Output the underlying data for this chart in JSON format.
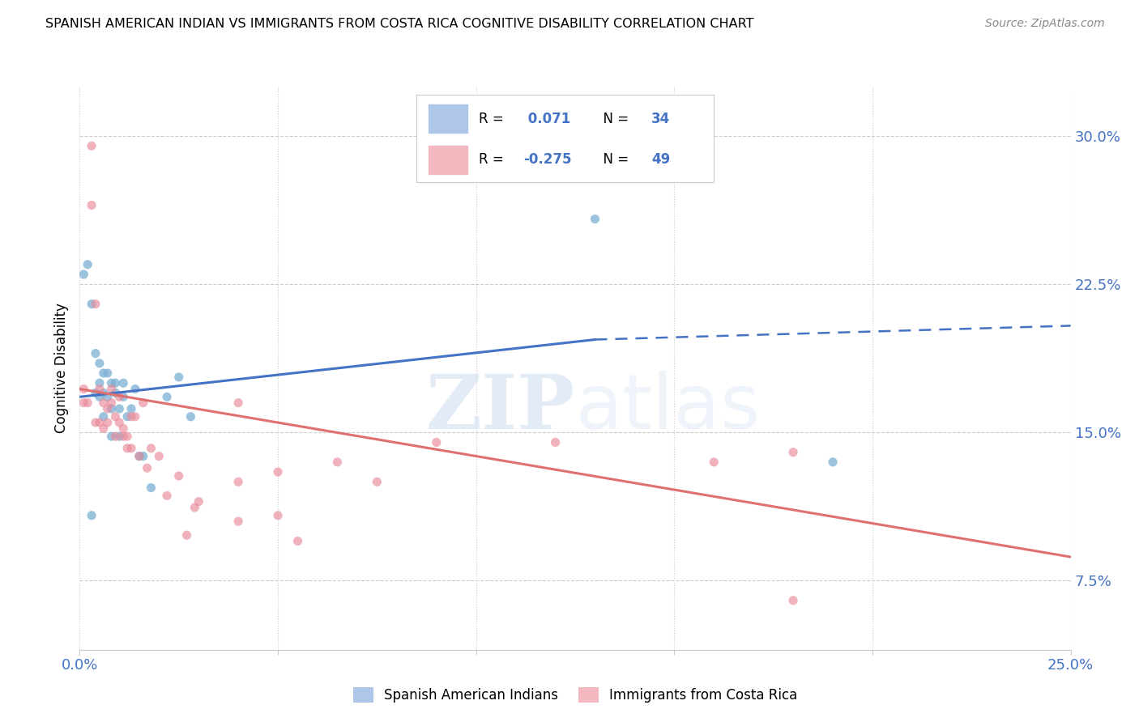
{
  "title": "SPANISH AMERICAN INDIAN VS IMMIGRANTS FROM COSTA RICA COGNITIVE DISABILITY CORRELATION CHART",
  "source": "Source: ZipAtlas.com",
  "ylabel": "Cognitive Disability",
  "ylabel_right_ticks": [
    0.075,
    0.15,
    0.225,
    0.3
  ],
  "ylabel_right_labels": [
    "7.5%",
    "15.0%",
    "22.5%",
    "30.0%"
  ],
  "xlim": [
    0.0,
    0.25
  ],
  "ylim": [
    0.04,
    0.325
  ],
  "blue_R": "0.071",
  "blue_N": "34",
  "pink_R": "-0.275",
  "pink_N": "49",
  "blue_line_x0": 0.0,
  "blue_line_y0": 0.168,
  "blue_line_x1": 0.13,
  "blue_line_y1": 0.197,
  "blue_line_x2": 0.25,
  "blue_line_y2": 0.204,
  "pink_line_x0": 0.0,
  "pink_line_y0": 0.172,
  "pink_line_x1": 0.25,
  "pink_line_y1": 0.087,
  "blue_color": "#4472c4",
  "pink_color": "#e07070",
  "blue_scatter_color": "#7bafd4",
  "pink_scatter_color": "#e88a9a",
  "legend_label_blue": "Spanish American Indians",
  "legend_label_pink": "Immigrants from Costa Rica",
  "blue_scatter_x": [
    0.001,
    0.002,
    0.003,
    0.004,
    0.004,
    0.005,
    0.005,
    0.005,
    0.006,
    0.006,
    0.007,
    0.007,
    0.008,
    0.008,
    0.009,
    0.009,
    0.01,
    0.01,
    0.011,
    0.011,
    0.012,
    0.013,
    0.014,
    0.015,
    0.016,
    0.018,
    0.022,
    0.025,
    0.028,
    0.003,
    0.006,
    0.008,
    0.13,
    0.19
  ],
  "blue_scatter_y": [
    0.23,
    0.235,
    0.215,
    0.19,
    0.17,
    0.185,
    0.175,
    0.168,
    0.18,
    0.17,
    0.18,
    0.168,
    0.175,
    0.162,
    0.175,
    0.17,
    0.162,
    0.148,
    0.175,
    0.168,
    0.158,
    0.162,
    0.172,
    0.138,
    0.138,
    0.122,
    0.168,
    0.178,
    0.158,
    0.108,
    0.158,
    0.148,
    0.258,
    0.135
  ],
  "pink_scatter_x": [
    0.001,
    0.001,
    0.002,
    0.003,
    0.003,
    0.004,
    0.004,
    0.005,
    0.005,
    0.006,
    0.006,
    0.007,
    0.007,
    0.008,
    0.008,
    0.009,
    0.009,
    0.01,
    0.01,
    0.011,
    0.011,
    0.012,
    0.012,
    0.013,
    0.013,
    0.014,
    0.015,
    0.016,
    0.017,
    0.018,
    0.02,
    0.022,
    0.025,
    0.027,
    0.029,
    0.04,
    0.05,
    0.065,
    0.075,
    0.09,
    0.04,
    0.05,
    0.12,
    0.16,
    0.18,
    0.18,
    0.03,
    0.04,
    0.055
  ],
  "pink_scatter_y": [
    0.172,
    0.165,
    0.165,
    0.295,
    0.265,
    0.215,
    0.155,
    0.172,
    0.155,
    0.165,
    0.152,
    0.162,
    0.155,
    0.165,
    0.172,
    0.148,
    0.158,
    0.168,
    0.155,
    0.152,
    0.148,
    0.148,
    0.142,
    0.158,
    0.142,
    0.158,
    0.138,
    0.165,
    0.132,
    0.142,
    0.138,
    0.118,
    0.128,
    0.098,
    0.112,
    0.165,
    0.108,
    0.135,
    0.125,
    0.145,
    0.125,
    0.13,
    0.145,
    0.135,
    0.14,
    0.065,
    0.115,
    0.105,
    0.095
  ],
  "watermark_zip": "ZIP",
  "watermark_atlas": "atlas",
  "background_color": "#ffffff",
  "grid_color": "#cccccc"
}
